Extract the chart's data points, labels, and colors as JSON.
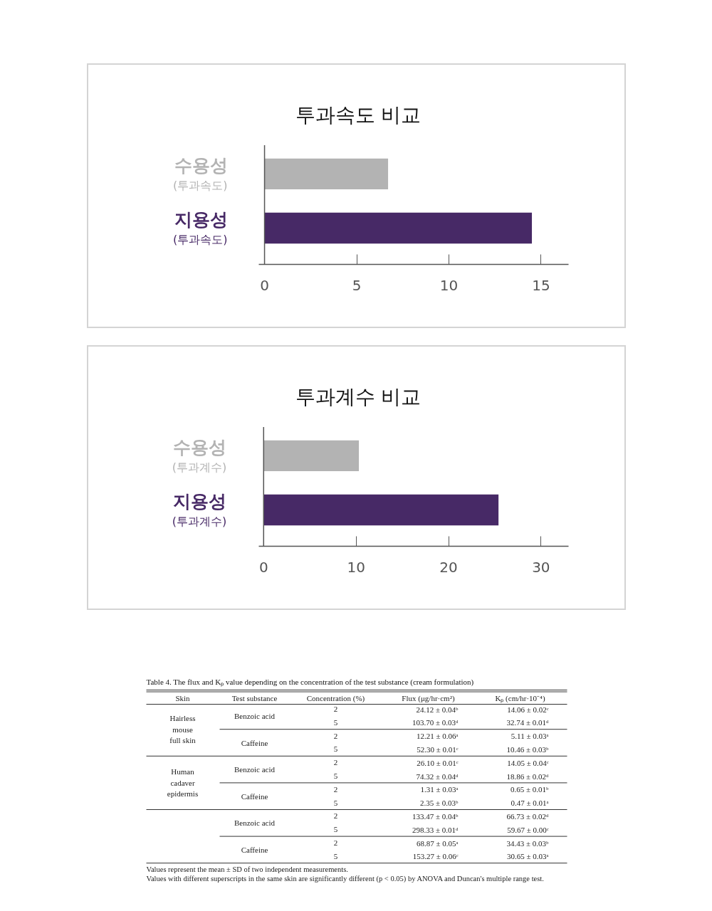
{
  "chart_data": [
    {
      "type": "bar",
      "orientation": "horizontal",
      "title": "투과속도 비교",
      "categories": [
        "수용성\n(투과속도)",
        "지용성\n(투과속도)"
      ],
      "values": [
        6.7,
        14.5
      ],
      "colors": [
        "#b3b3b3",
        "#472966"
      ],
      "xlim": [
        -0.3,
        16.5
      ],
      "xticks": [
        0,
        5,
        10,
        15
      ]
    },
    {
      "type": "bar",
      "orientation": "horizontal",
      "title": "투과계수 비교",
      "categories": [
        "수용성\n(투과계수)",
        "지용성\n(투과계수)"
      ],
      "values": [
        10.3,
        25.4
      ],
      "colors": [
        "#b3b3b3",
        "#472966"
      ],
      "xlim": [
        -0.5,
        33
      ],
      "xticks": [
        0,
        10,
        20,
        30
      ]
    },
    {
      "type": "other",
      "title": "Table 4. The flux and Kₚ value depending on the concentration of the test substance (cream formulation)",
      "categories": [
        "Skin",
        "Test substance",
        "Concentration (%)",
        "Flux (μg/hr·cm²)",
        "Kₚ (cm/hr·10⁻⁴)"
      ],
      "cell_labels": [
        [
          "Hairless\nmouse\nfull skin",
          "Benzoic acid",
          "2",
          "24.12 ± 0.04ᵇ",
          "14.06 ± 0.02ᶜ"
        ],
        [
          null,
          null,
          "5",
          "103.70 ± 0.03ᵈ",
          "32.74 ± 0.01ᵈ"
        ],
        [
          null,
          "Caffeine",
          "2",
          "12.21 ± 0.06ᵃ",
          "5.11 ± 0.03ᵃ"
        ],
        [
          null,
          null,
          "5",
          "52.30 ± 0.01ᶜ",
          "10.46 ± 0.03ᵇ"
        ],
        [
          "Human\ncadaver\nepidermis",
          "Benzoic acid",
          "2",
          "26.10 ± 0.01ᶜ",
          "14.05 ± 0.04ᶜ"
        ],
        [
          null,
          null,
          "5",
          "74.32 ± 0.04ᵈ",
          "18.86 ± 0.02ᵈ"
        ],
        [
          null,
          "Caffeine",
          "2",
          "1.31 ± 0.03ᵃ",
          "0.65 ± 0.01ᵇ"
        ],
        [
          null,
          null,
          "5",
          "2.35 ± 0.03ᵇ",
          "0.47 ± 0.01ᵃ"
        ],
        [
          null,
          "Benzoic acid",
          "2",
          "133.47 ± 0.04ᵇ",
          "66.73 ± 0.02ᵈ"
        ],
        [
          null,
          null,
          "5",
          "298.33 ± 0.01ᵈ",
          "59.67 ± 0.00ᶜ"
        ],
        [
          null,
          "Caffeine",
          "2",
          "68.87 ± 0.05ᵃ",
          "34.43 ± 0.03ᵇ"
        ],
        [
          null,
          null,
          "5",
          "153.27 ± 0.06ᶜ",
          "30.65 ± 0.03ᵃ"
        ]
      ],
      "annotations": [
        "Values represent the mean ± SD of two independent measurements.",
        "Values with different superscripts in the same skin are significantly different (p < 0.05) by ANOVA and Duncan's multiple range test."
      ]
    }
  ]
}
